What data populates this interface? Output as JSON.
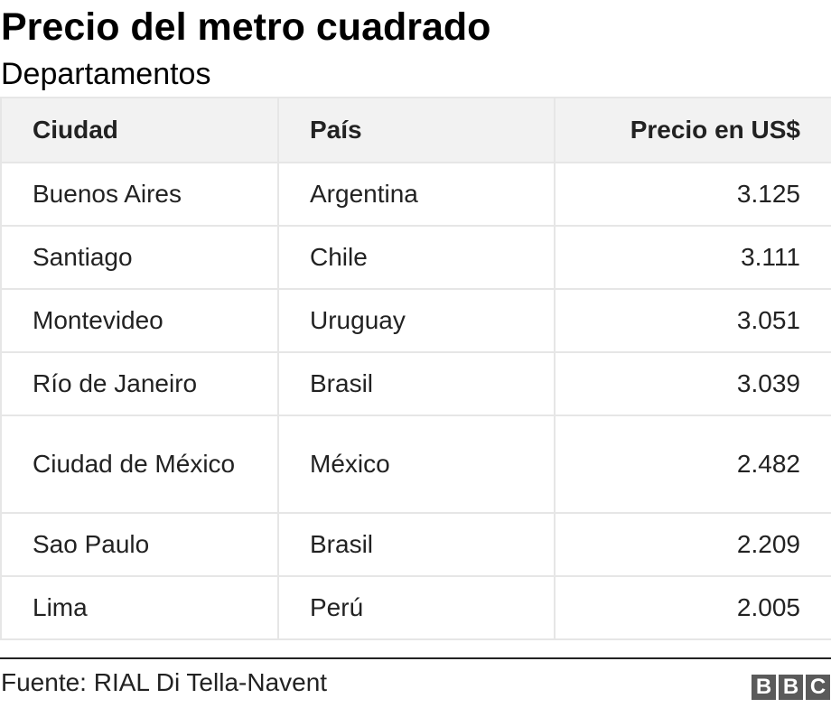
{
  "chart_data": {
    "type": "table",
    "title": "Precio del metro cuadrado",
    "subtitle": "Departamentos",
    "columns": [
      "Ciudad",
      "País",
      "Precio en US$"
    ],
    "rows": [
      [
        "Buenos Aires",
        "Argentina",
        "3.125"
      ],
      [
        "Santiago",
        "Chile",
        "3.111"
      ],
      [
        "Montevideo",
        "Uruguay",
        "3.051"
      ],
      [
        "Río de Janeiro",
        "Brasil",
        "3.039"
      ],
      [
        "Ciudad de México",
        "México",
        "2.482"
      ],
      [
        "Sao Paulo",
        "Brasil",
        "2.209"
      ],
      [
        "Lima",
        "Perú",
        "2.005"
      ]
    ],
    "source": "Fuente: RIAL Di Tella-Navent"
  },
  "logo": [
    "B",
    "B",
    "C"
  ]
}
